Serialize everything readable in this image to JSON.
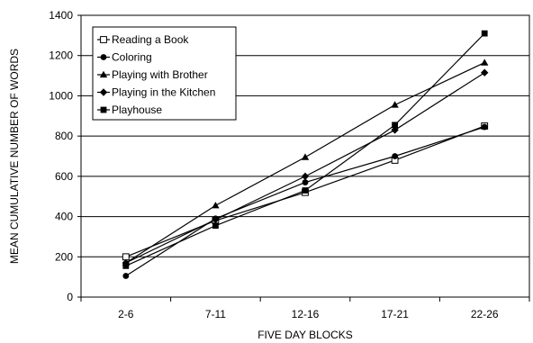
{
  "chart_data": {
    "type": "line",
    "title": "",
    "xlabel": "FIVE DAY BLOCKS",
    "ylabel": "MEAN CUMULATIVE NUMBER OF WORDS",
    "categories": [
      "2-6",
      "7-11",
      "12-16",
      "17-21",
      "22-26"
    ],
    "ylim": [
      0,
      1400
    ],
    "yticks": [
      0,
      200,
      400,
      600,
      800,
      1000,
      1200,
      1400
    ],
    "grid": true,
    "legend_position": "top-left",
    "series": [
      {
        "name": "Reading a Book",
        "marker": "open-square",
        "values": [
          200,
          380,
          520,
          680,
          850
        ]
      },
      {
        "name": "Coloring",
        "marker": "circle",
        "values": [
          105,
          390,
          570,
          700,
          845
        ]
      },
      {
        "name": "Playing with Brother",
        "marker": "triangle",
        "values": [
          170,
          455,
          695,
          955,
          1165
        ]
      },
      {
        "name": "Playing in the Kitchen",
        "marker": "diamond",
        "values": [
          170,
          385,
          600,
          830,
          1115
        ]
      },
      {
        "name": "Playhouse",
        "marker": "square",
        "values": [
          155,
          355,
          530,
          855,
          1310
        ]
      }
    ]
  }
}
